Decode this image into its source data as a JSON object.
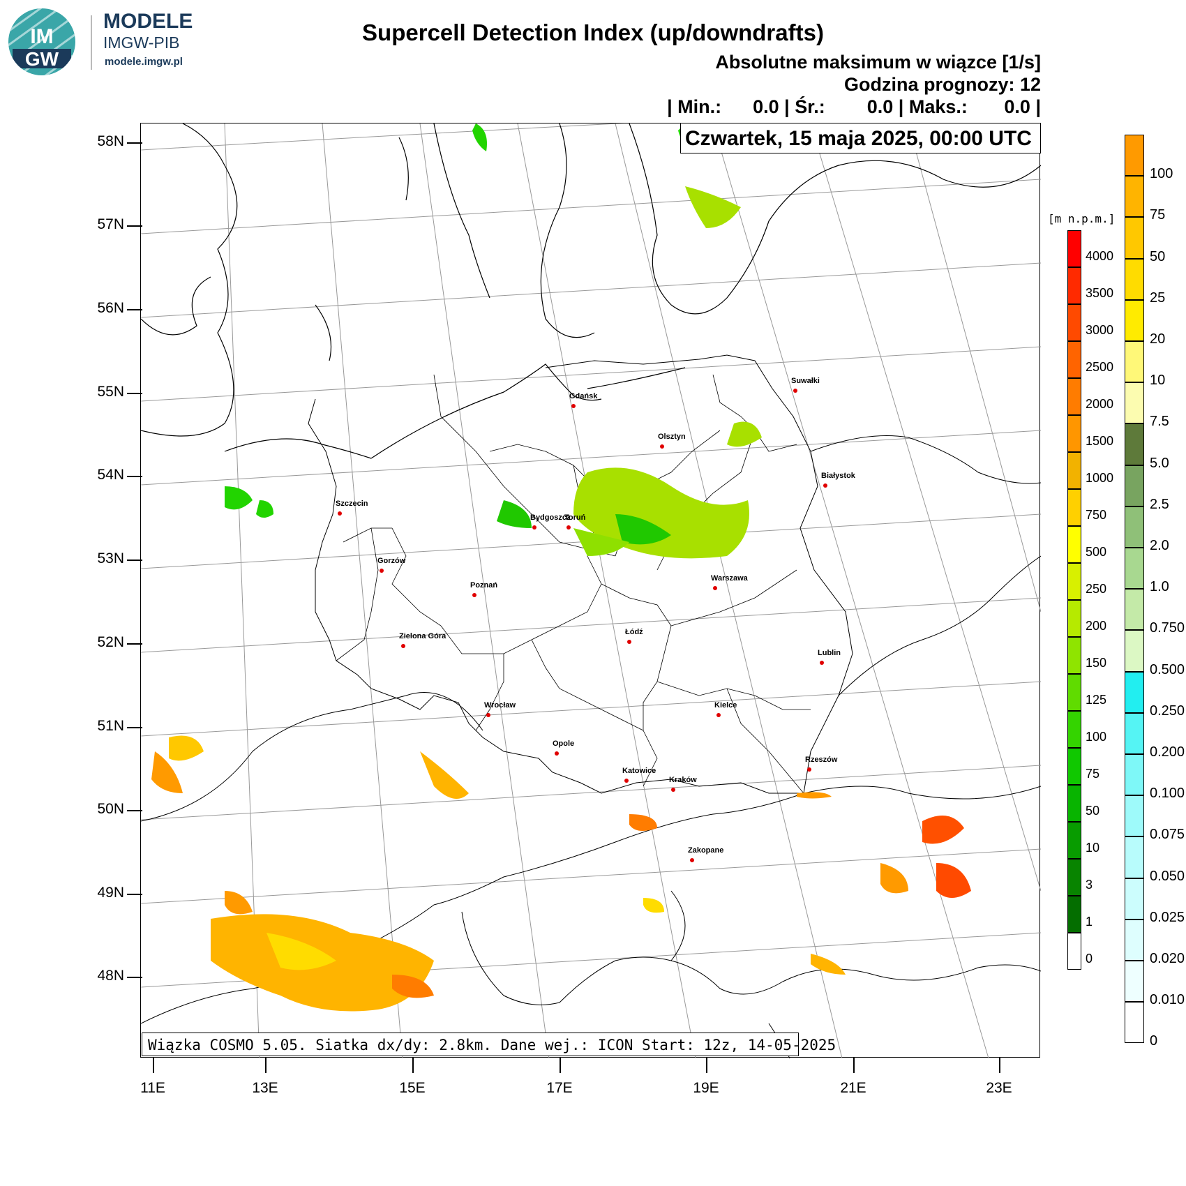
{
  "logo": {
    "badge_top": "IM",
    "badge_bottom": "GW",
    "name": "MODELE",
    "org": "IMGW-PIB",
    "url": "modele.imgw.pl"
  },
  "header": {
    "title": "Supercell Detection Index (up/downdrafts)",
    "subtitle": "Absolutne maksimum w wiązce [1/s]",
    "forecast_hour": "Godzina prognozy: 12",
    "stats": "| Min.:      0.0 | Śr.:        0.0 | Maks.:       0.0 |",
    "date": "Czwartek, 15 maja 2025, 00:00 UTC"
  },
  "footer": "Wiązka COSMO 5.05. Siatka dx/dy: 2.8km. Dane wej.: ICON Start: 12z, 14-05-2025",
  "lat_labels": [
    "58N",
    "57N",
    "56N",
    "55N",
    "54N",
    "53N",
    "52N",
    "51N",
    "50N",
    "49N",
    "48N"
  ],
  "lon_labels": [
    "11E",
    "13E",
    "15E",
    "17E",
    "19E",
    "21E",
    "23E"
  ],
  "cities": [
    "Gdańsk",
    "Olsztyn",
    "Suwałki",
    "Białystok",
    "Szczecin",
    "Bydgoszcz",
    "Toruń",
    "Gorzów",
    "Poznań",
    "Warszawa",
    "Zielona Góra",
    "Łódź",
    "Lublin",
    "Wrocław",
    "Kielce",
    "Opole",
    "Rzeszów",
    "Katowice",
    "Kraków",
    "Zakopane"
  ],
  "elevation_scale": {
    "unit": "[m n.p.m.]",
    "labels": [
      "4000",
      "3500",
      "3000",
      "2500",
      "2000",
      "1500",
      "1000",
      "750",
      "500",
      "250",
      "200",
      "150",
      "125",
      "100",
      "75",
      "50",
      "10",
      "3",
      "1",
      "0"
    ],
    "colors": [
      "#ff0000",
      "#ff2a00",
      "#ff4a00",
      "#ff6400",
      "#ff7c00",
      "#ff9600",
      "#f2b200",
      "#ffd000",
      "#ffff00",
      "#d8f000",
      "#b6ea00",
      "#8fe400",
      "#60dc00",
      "#34d400",
      "#10c800",
      "#08b400",
      "#089c00",
      "#088400",
      "#046e00",
      "#ffffff"
    ]
  },
  "sdi_scale": {
    "labels": [
      "100",
      "75",
      "50",
      "25",
      "20",
      "10",
      "7.5",
      "5.0",
      "2.5",
      "2.0",
      "1.0",
      "0.750",
      "0.500",
      "0.250",
      "0.200",
      "0.100",
      "0.075",
      "0.050",
      "0.025",
      "0.020",
      "0.010",
      "0"
    ],
    "colors": [
      "#ff9a00",
      "#ffb400",
      "#ffc800",
      "#ffdc00",
      "#ffeb00",
      "#fff878",
      "#fcfcb0",
      "#5e7a3a",
      "#78a460",
      "#8fc078",
      "#a8d890",
      "#c4eaa8",
      "#dcf8c4",
      "#22eef0",
      "#55f4f4",
      "#7ef8f8",
      "#9efafa",
      "#b8fcfc",
      "#ccfdfd",
      "#defefe",
      "#eeffff",
      "#ffffff"
    ]
  }
}
